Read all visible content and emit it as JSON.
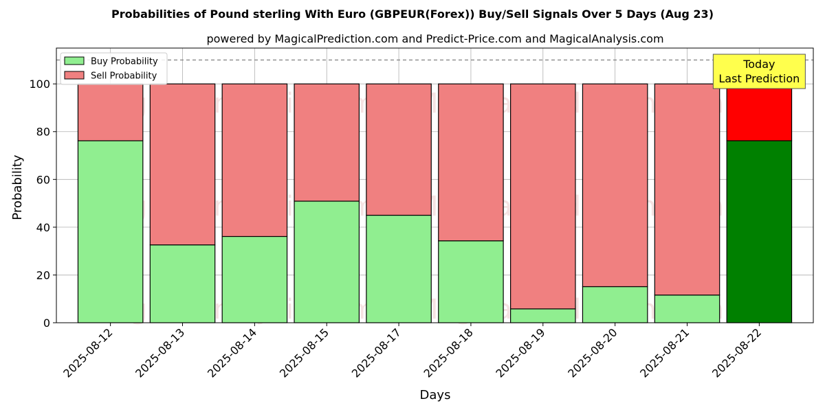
{
  "chart_data": {
    "type": "bar",
    "stacked": true,
    "title": "Probabilities of Pound sterling With Euro (GBPEUR(Forex)) Buy/Sell Signals Over 5 Days (Aug 23)",
    "subtitle": "powered by MagicalPrediction.com and Predict-Price.com and MagicalAnalysis.com",
    "xlabel": "Days",
    "ylabel": "Probability",
    "ylim": [
      0,
      115
    ],
    "yticks": [
      0,
      20,
      40,
      60,
      80,
      100
    ],
    "grid": true,
    "legend_position": "top-left",
    "reference_line": 110,
    "categories": [
      "2025-08-12",
      "2025-08-13",
      "2025-08-14",
      "2025-08-15",
      "2025-08-17",
      "2025-08-18",
      "2025-08-19",
      "2025-08-20",
      "2025-08-21",
      "2025-08-22"
    ],
    "series": [
      {
        "name": "Buy Probability",
        "color": "#90ee90",
        "values": [
          76.2,
          32.6,
          36.1,
          50.9,
          45.0,
          34.3,
          5.8,
          15.1,
          11.6,
          76.2
        ]
      },
      {
        "name": "Sell Probability",
        "color": "#f08080",
        "values": [
          23.8,
          67.4,
          63.9,
          49.1,
          55.0,
          65.7,
          94.2,
          84.9,
          88.4,
          23.8
        ]
      }
    ],
    "highlight": {
      "index": 9,
      "buy_color": "#008000",
      "sell_color": "#ff0000"
    },
    "annotation": {
      "lines": [
        "Today",
        "Last Prediction"
      ],
      "background": "#ffff4d"
    },
    "watermarks": [
      "MagicalAnalysis.com",
      "MagicalPrediction.com"
    ]
  }
}
